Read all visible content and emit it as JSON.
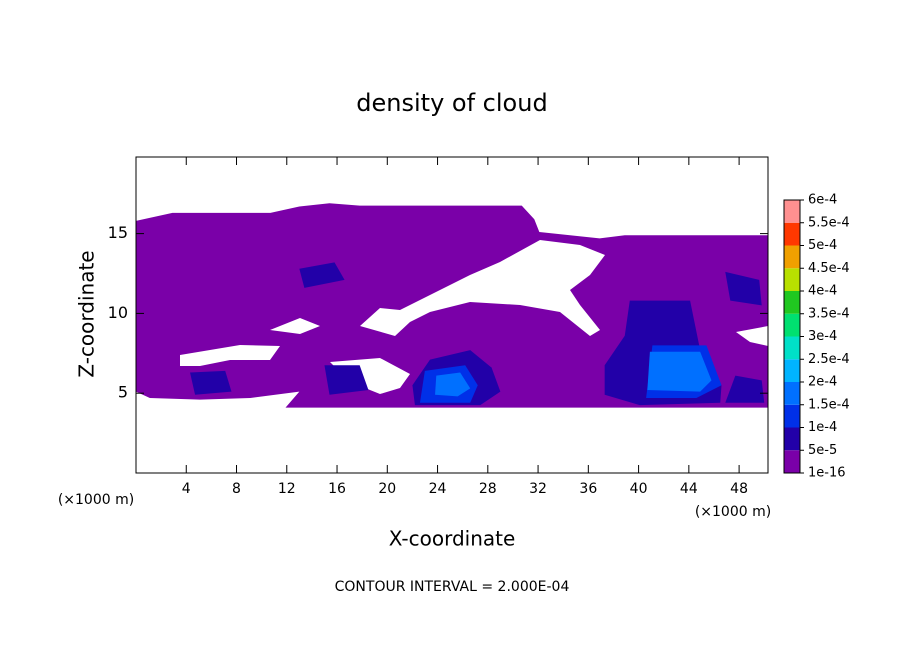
{
  "chart_data": {
    "type": "contour",
    "title": "density of cloud",
    "xlabel": "X-coordinate",
    "ylabel": "Z-coordinate",
    "x_unit_label": "(×1000 m)",
    "y_unit_label": "(×1000 m)",
    "annotation": "CONTOUR INTERVAL = 2.000E-04",
    "xlim": [
      0,
      50.3
    ],
    "ylim": [
      0,
      19.8
    ],
    "xticks": [
      4,
      8,
      12,
      16,
      20,
      24,
      28,
      32,
      36,
      40,
      44,
      48
    ],
    "yticks": [
      5,
      10,
      15
    ],
    "colorbar": {
      "ticks": [
        {
          "value": 1e-16,
          "label": "1e-16"
        },
        {
          "value": 5e-05,
          "label": "5e-5"
        },
        {
          "value": 0.0001,
          "label": "1e-4"
        },
        {
          "value": 0.00015,
          "label": "1.5e-4"
        },
        {
          "value": 0.0002,
          "label": "2e-4"
        },
        {
          "value": 0.00025,
          "label": "2.5e-4"
        },
        {
          "value": 0.0003,
          "label": "3e-4"
        },
        {
          "value": 0.00035,
          "label": "3.5e-4"
        },
        {
          "value": 0.0004,
          "label": "4e-4"
        },
        {
          "value": 0.00045,
          "label": "4.5e-4"
        },
        {
          "value": 0.0005,
          "label": "5e-4"
        },
        {
          "value": 0.00055,
          "label": "5.5e-4"
        },
        {
          "value": 0.0006,
          "label": "6e-4"
        }
      ],
      "colors": [
        "#7a00a8",
        "#2200a8",
        "#0030e8",
        "#0070ff",
        "#00b4ff",
        "#00e0c8",
        "#00e070",
        "#20c820",
        "#b8e000",
        "#f0a000",
        "#ff3800",
        "#ff9090"
      ]
    },
    "regions": [
      {
        "level": 0,
        "points": [
          [
            0,
            15.8
          ],
          [
            2.9,
            16.3
          ],
          [
            10.7,
            16.3
          ],
          [
            13,
            16.7
          ],
          [
            15.4,
            16.9
          ],
          [
            17.8,
            16.75
          ],
          [
            30.7,
            16.75
          ],
          [
            31.7,
            15.9
          ],
          [
            32.1,
            15.1
          ],
          [
            36.9,
            14.7
          ],
          [
            38.9,
            14.9
          ],
          [
            50.3,
            14.9
          ],
          [
            50.3,
            4.1
          ],
          [
            21,
            4.1
          ],
          [
            11.9,
            4.1
          ],
          [
            13,
            5.1
          ],
          [
            9.1,
            4.7
          ],
          [
            5.1,
            4.6
          ],
          [
            1.1,
            4.7
          ],
          [
            0,
            5.1
          ]
        ]
      },
      {
        "level": 1,
        "points": [
          [
            39.3,
            10.8
          ],
          [
            44.1,
            10.8
          ],
          [
            44.9,
            7.7
          ],
          [
            46.6,
            5.5
          ],
          [
            46.5,
            4.4
          ],
          [
            40.1,
            4.25
          ],
          [
            37.3,
            4.9
          ],
          [
            37.3,
            6.75
          ],
          [
            38.9,
            8.6
          ]
        ]
      },
      {
        "level": 1,
        "points": [
          [
            23.4,
            7.1
          ],
          [
            26.6,
            7.7
          ],
          [
            28.3,
            6.6
          ],
          [
            29,
            5.1
          ],
          [
            27.4,
            4.25
          ],
          [
            22.2,
            4.25
          ],
          [
            22,
            5.5
          ]
        ]
      },
      {
        "level": 1,
        "points": [
          [
            4.3,
            6.3
          ],
          [
            7.1,
            6.4
          ],
          [
            7.6,
            5.1
          ],
          [
            4.7,
            4.9
          ]
        ]
      },
      {
        "level": 1,
        "points": [
          [
            15,
            6.75
          ],
          [
            17.8,
            6.75
          ],
          [
            18.5,
            5.2
          ],
          [
            15.4,
            4.9
          ]
        ]
      },
      {
        "level": 1,
        "points": [
          [
            13,
            12.8
          ],
          [
            15.8,
            13.2
          ],
          [
            16.6,
            12.1
          ],
          [
            13.4,
            11.6
          ]
        ]
      },
      {
        "level": 1,
        "points": [
          [
            46.9,
            12.6
          ],
          [
            49.6,
            12.1
          ],
          [
            49.8,
            10.5
          ],
          [
            47.3,
            10.8
          ]
        ]
      },
      {
        "level": 1,
        "points": [
          [
            47.7,
            6.1
          ],
          [
            49.8,
            5.8
          ],
          [
            50,
            4.4
          ],
          [
            46.9,
            4.4
          ]
        ]
      },
      {
        "level": 2,
        "points": [
          [
            41.1,
            8
          ],
          [
            45.4,
            8
          ],
          [
            46.6,
            5.5
          ],
          [
            44.6,
            4.7
          ],
          [
            40.6,
            4.7
          ]
        ]
      },
      {
        "level": 2,
        "points": [
          [
            22.99,
            6.4
          ],
          [
            26.2,
            6.75
          ],
          [
            27.2,
            5.5
          ],
          [
            26.6,
            4.4
          ],
          [
            22.6,
            4.4
          ]
        ]
      },
      {
        "level": 3,
        "points": [
          [
            40.9,
            7.6
          ],
          [
            44.9,
            7.6
          ],
          [
            45.8,
            5.8
          ],
          [
            44.9,
            5.1
          ],
          [
            40.7,
            5.2
          ]
        ]
      },
      {
        "level": 3,
        "points": [
          [
            23.9,
            6.1
          ],
          [
            25.8,
            6.3
          ],
          [
            26.6,
            5.3
          ],
          [
            25.6,
            4.8
          ],
          [
            23.8,
            4.9
          ]
        ]
      }
    ]
  }
}
